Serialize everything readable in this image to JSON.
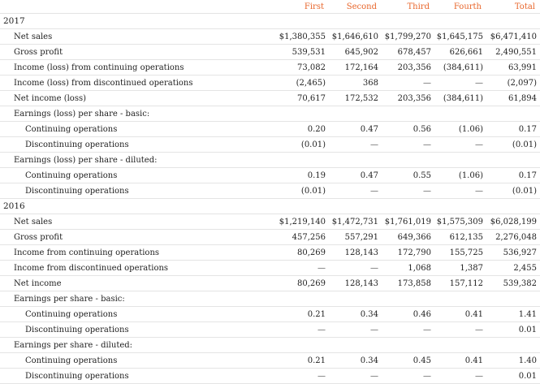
{
  "columns": [
    "First",
    "Second",
    "Third",
    "Fourth",
    "Total"
  ],
  "sections": [
    {
      "year": "2017",
      "rows": [
        {
          "label": "Net sales",
          "indent": 1,
          "values": [
            "$1,380,355",
            "$1,646,610",
            "$1,799,270",
            "$1,645,175",
            "$6,471,410"
          ]
        },
        {
          "label": "Gross profit",
          "indent": 1,
          "values": [
            "539,531",
            "645,902",
            "678,457",
            "626,661",
            "2,490,551"
          ]
        },
        {
          "label": "Income (loss) from continuing operations",
          "indent": 1,
          "values": [
            "73,082",
            "172,164",
            "203,356",
            "(384,611)",
            "63,991"
          ]
        },
        {
          "label": "Income (loss) from discontinued operations",
          "indent": 1,
          "values": [
            "(2,465)",
            "368",
            "—",
            "—",
            "(2,097)"
          ]
        },
        {
          "label": "Net income (loss)",
          "indent": 1,
          "values": [
            "70,617",
            "172,532",
            "203,356",
            "(384,611)",
            "61,894"
          ]
        },
        {
          "label": "Earnings (loss) per share - basic:",
          "indent": 1,
          "values": [
            "",
            "",
            "",
            "",
            ""
          ]
        },
        {
          "label": "Continuing operations",
          "indent": 2,
          "values": [
            "0.20",
            "0.47",
            "0.56",
            "(1.06)",
            "0.17"
          ]
        },
        {
          "label": "Discontinuing operations",
          "indent": 2,
          "values": [
            "(0.01)",
            "—",
            "—",
            "—",
            "(0.01)"
          ]
        },
        {
          "label": "Earnings (loss) per share - diluted:",
          "indent": 1,
          "values": [
            "",
            "",
            "",
            "",
            ""
          ]
        },
        {
          "label": "Continuing operations",
          "indent": 2,
          "values": [
            "0.19",
            "0.47",
            "0.55",
            "(1.06)",
            "0.17"
          ]
        },
        {
          "label": "Discontinuing operations",
          "indent": 2,
          "values": [
            "(0.01)",
            "—",
            "—",
            "—",
            "(0.01)"
          ]
        }
      ]
    },
    {
      "year": "2016",
      "rows": [
        {
          "label": "Net sales",
          "indent": 1,
          "values": [
            "$1,219,140",
            "$1,472,731",
            "$1,761,019",
            "$1,575,309",
            "$6,028,199"
          ]
        },
        {
          "label": "Gross profit",
          "indent": 1,
          "values": [
            "457,256",
            "557,291",
            "649,366",
            "612,135",
            "2,276,048"
          ]
        },
        {
          "label": "Income from continuing operations",
          "indent": 1,
          "values": [
            "80,269",
            "128,143",
            "172,790",
            "155,725",
            "536,927"
          ]
        },
        {
          "label": "Income from discontinued operations",
          "indent": 1,
          "values": [
            "—",
            "—",
            "1,068",
            "1,387",
            "2,455"
          ]
        },
        {
          "label": "Net income",
          "indent": 1,
          "values": [
            "80,269",
            "128,143",
            "173,858",
            "157,112",
            "539,382"
          ]
        },
        {
          "label": "Earnings per share - basic:",
          "indent": 1,
          "values": [
            "",
            "",
            "",
            "",
            ""
          ]
        },
        {
          "label": "Continuing operations",
          "indent": 2,
          "values": [
            "0.21",
            "0.34",
            "0.46",
            "0.41",
            "1.41"
          ]
        },
        {
          "label": "Discontinuing operations",
          "indent": 2,
          "values": [
            "—",
            "—",
            "—",
            "—",
            "0.01"
          ]
        },
        {
          "label": "Earnings per share - diluted:",
          "indent": 1,
          "values": [
            "",
            "",
            "",
            "",
            ""
          ]
        },
        {
          "label": "Continuing operations",
          "indent": 2,
          "values": [
            "0.21",
            "0.34",
            "0.45",
            "0.41",
            "1.40"
          ]
        },
        {
          "label": "Discontinuing operations",
          "indent": 2,
          "values": [
            "—",
            "—",
            "—",
            "—",
            "0.01"
          ]
        }
      ]
    }
  ],
  "colors": {
    "header_text": "#e8652a",
    "body_text": "#222222",
    "row_rule": "#e4e4e4"
  }
}
